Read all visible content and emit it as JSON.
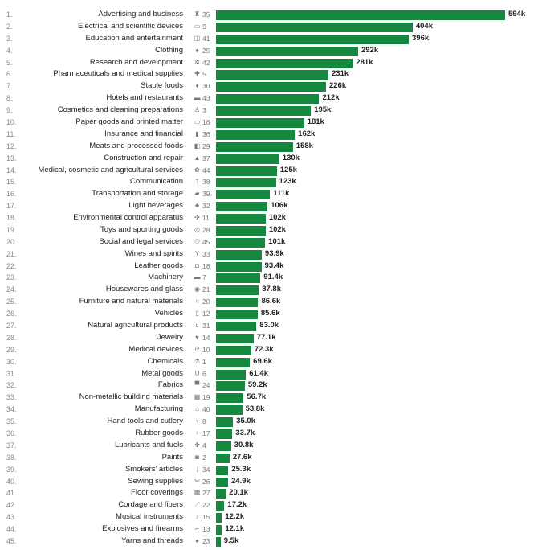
{
  "chart_data": {
    "type": "bar",
    "orientation": "horizontal",
    "title": "",
    "xlabel": "",
    "ylabel": "",
    "xlim": [
      0,
      594000
    ],
    "grid": false,
    "color": "#15883f",
    "rows": [
      {
        "rank": "1.",
        "category": "Advertising and business",
        "icon": "briefcase-icon",
        "class": "35",
        "value": 594000,
        "label": "594k"
      },
      {
        "rank": "2.",
        "category": "Electrical and scientific devices",
        "icon": "computer-icon",
        "class": "9",
        "value": 404000,
        "label": "404k"
      },
      {
        "rank": "3.",
        "category": "Education and entertainment",
        "icon": "board-icon",
        "class": "41",
        "value": 396000,
        "label": "396k"
      },
      {
        "rank": "4.",
        "category": "Clothing",
        "icon": "shirt-icon",
        "class": "25",
        "value": 292000,
        "label": "292k"
      },
      {
        "rank": "5.",
        "category": "Research and development",
        "icon": "gear-icon",
        "class": "42",
        "value": 281000,
        "label": "281k"
      },
      {
        "rank": "6.",
        "category": "Pharmaceuticals and medical supplies",
        "icon": "medical-icon",
        "class": "5",
        "value": 231000,
        "label": "231k"
      },
      {
        "rank": "7.",
        "category": "Staple foods",
        "icon": "bottle-icon",
        "class": "30",
        "value": 226000,
        "label": "226k"
      },
      {
        "rank": "8.",
        "category": "Hotels and restaurants",
        "icon": "bed-icon",
        "class": "43",
        "value": 212000,
        "label": "212k"
      },
      {
        "rank": "9.",
        "category": "Cosmetics and cleaning preparations",
        "icon": "cosmetics-icon",
        "class": "3",
        "value": 195000,
        "label": "195k"
      },
      {
        "rank": "10.",
        "category": "Paper goods and printed matter",
        "icon": "book-icon",
        "class": "16",
        "value": 181000,
        "label": "181k"
      },
      {
        "rank": "11.",
        "category": "Insurance and financial",
        "icon": "chart-icon",
        "class": "36",
        "value": 162000,
        "label": "162k"
      },
      {
        "rank": "12.",
        "category": "Meats and processed foods",
        "icon": "meat-icon",
        "class": "29",
        "value": 158000,
        "label": "158k"
      },
      {
        "rank": "13.",
        "category": "Construction and repair",
        "icon": "construction-icon",
        "class": "37",
        "value": 130000,
        "label": "130k"
      },
      {
        "rank": "14.",
        "category": "Medical, cosmetic and agricultural services",
        "icon": "service-icon",
        "class": "44",
        "value": 125000,
        "label": "125k"
      },
      {
        "rank": "15.",
        "category": "Communication",
        "icon": "antenna-icon",
        "class": "38",
        "value": 123000,
        "label": "123k"
      },
      {
        "rank": "16.",
        "category": "Transportation and storage",
        "icon": "truck-icon",
        "class": "39",
        "value": 111000,
        "label": "111k"
      },
      {
        "rank": "17.",
        "category": "Light beverages",
        "icon": "beverage-icon",
        "class": "32",
        "value": 106000,
        "label": "106k"
      },
      {
        "rank": "18.",
        "category": "Environmental control apparatus",
        "icon": "fan-icon",
        "class": "11",
        "value": 102000,
        "label": "102k"
      },
      {
        "rank": "19.",
        "category": "Toys and sporting goods",
        "icon": "ball-icon",
        "class": "28",
        "value": 102000,
        "label": "102k"
      },
      {
        "rank": "20.",
        "category": "Social and legal services",
        "icon": "people-icon",
        "class": "45",
        "value": 101000,
        "label": "101k"
      },
      {
        "rank": "21.",
        "category": "Wines and spirits",
        "icon": "glass-icon",
        "class": "33",
        "value": 93900,
        "label": "93.9k"
      },
      {
        "rank": "22.",
        "category": "Leather goods",
        "icon": "bag-icon",
        "class": "18",
        "value": 93400,
        "label": "93.4k"
      },
      {
        "rank": "23.",
        "category": "Machinery",
        "icon": "machine-icon",
        "class": "7",
        "value": 91400,
        "label": "91.4k"
      },
      {
        "rank": "24.",
        "category": "Housewares and glass",
        "icon": "kitchen-icon",
        "class": "21",
        "value": 87800,
        "label": "87.8k"
      },
      {
        "rank": "25.",
        "category": "Furniture and natural materials",
        "icon": "chair-icon",
        "class": "20",
        "value": 86600,
        "label": "86.6k"
      },
      {
        "rank": "26.",
        "category": "Vehicles",
        "icon": "car-icon",
        "class": "12",
        "value": 85600,
        "label": "85.6k"
      },
      {
        "rank": "27.",
        "category": "Natural agricultural products",
        "icon": "plant-icon",
        "class": "31",
        "value": 83000,
        "label": "83.0k"
      },
      {
        "rank": "28.",
        "category": "Jewelry",
        "icon": "diamond-icon",
        "class": "14",
        "value": 77100,
        "label": "77.1k"
      },
      {
        "rank": "29.",
        "category": "Medical devices",
        "icon": "stethoscope-icon",
        "class": "10",
        "value": 72300,
        "label": "72.3k"
      },
      {
        "rank": "30.",
        "category": "Chemicals",
        "icon": "flask-icon",
        "class": "1",
        "value": 69600,
        "label": "69.6k"
      },
      {
        "rank": "31.",
        "category": "Metal goods",
        "icon": "pipe-icon",
        "class": "6",
        "value": 61400,
        "label": "61.4k"
      },
      {
        "rank": "32.",
        "category": "Fabrics",
        "icon": "fabric-icon",
        "class": "24",
        "value": 59200,
        "label": "59.2k"
      },
      {
        "rank": "33.",
        "category": "Non-metallic building materials",
        "icon": "brick-icon",
        "class": "19",
        "value": 56700,
        "label": "56.7k"
      },
      {
        "rank": "34.",
        "category": "Manufacturing",
        "icon": "factory-icon",
        "class": "40",
        "value": 53800,
        "label": "53.8k"
      },
      {
        "rank": "35.",
        "category": "Hand tools and cutlery",
        "icon": "cutlery-icon",
        "class": "8",
        "value": 35000,
        "label": "35.0k"
      },
      {
        "rank": "36.",
        "category": "Rubber goods",
        "icon": "rubber-icon",
        "class": "17",
        "value": 33700,
        "label": "33.7k"
      },
      {
        "rank": "37.",
        "category": "Lubricants and fuels",
        "icon": "fuel-icon",
        "class": "4",
        "value": 30800,
        "label": "30.8k"
      },
      {
        "rank": "38.",
        "category": "Paints",
        "icon": "paint-bucket-icon",
        "class": "2",
        "value": 27600,
        "label": "27.6k"
      },
      {
        "rank": "39.",
        "category": "Smokers' articles",
        "icon": "cigarette-icon",
        "class": "34",
        "value": 25300,
        "label": "25.3k"
      },
      {
        "rank": "40.",
        "category": "Sewing supplies",
        "icon": "scissors-icon",
        "class": "26",
        "value": 24900,
        "label": "24.9k"
      },
      {
        "rank": "41.",
        "category": "Floor coverings",
        "icon": "carpet-icon",
        "class": "27",
        "value": 20100,
        "label": "20.1k"
      },
      {
        "rank": "42.",
        "category": "Cordage and fibers",
        "icon": "rope-icon",
        "class": "22",
        "value": 17200,
        "label": "17.2k"
      },
      {
        "rank": "43.",
        "category": "Musical instruments",
        "icon": "guitar-icon",
        "class": "15",
        "value": 12200,
        "label": "12.2k"
      },
      {
        "rank": "44.",
        "category": "Explosives and firearms",
        "icon": "gun-icon",
        "class": "13",
        "value": 12100,
        "label": "12.1k"
      },
      {
        "rank": "45.",
        "category": "Yarns and threads",
        "icon": "yarn-icon",
        "class": "23",
        "value": 9500,
        "label": "9.5k"
      }
    ]
  }
}
